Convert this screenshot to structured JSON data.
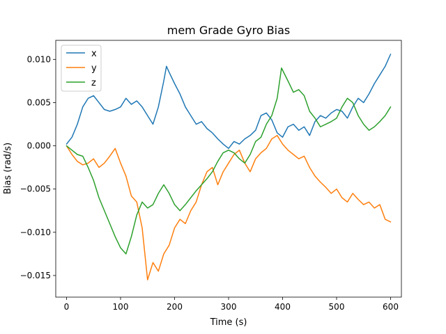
{
  "chart_data": {
    "type": "line",
    "title": "mem Grade Gyro Bias",
    "xlabel": "Time (s)",
    "ylabel": "Bias (rad/s)",
    "xlim": [
      -20,
      620
    ],
    "ylim": [
      -0.0175,
      0.0122
    ],
    "xticks": [
      0,
      100,
      200,
      300,
      400,
      500,
      600
    ],
    "xtick_labels": [
      "0",
      "100",
      "200",
      "300",
      "400",
      "500",
      "600"
    ],
    "yticks": [
      -0.015,
      -0.01,
      -0.005,
      0.0,
      0.005,
      0.01
    ],
    "ytick_labels": [
      "−0.015",
      "−0.010",
      "−0.005",
      "0.000",
      "0.005",
      "0.010"
    ],
    "grid": false,
    "legend": "top-left",
    "series": [
      {
        "name": "x",
        "color": "#1f77b4",
        "x": [
          0,
          10,
          20,
          30,
          40,
          50,
          60,
          70,
          80,
          90,
          100,
          110,
          120,
          130,
          140,
          150,
          160,
          170,
          180,
          185,
          190,
          200,
          210,
          220,
          230,
          240,
          250,
          260,
          270,
          280,
          290,
          300,
          310,
          320,
          330,
          340,
          350,
          360,
          370,
          380,
          390,
          400,
          410,
          420,
          430,
          440,
          450,
          460,
          470,
          480,
          490,
          500,
          510,
          520,
          530,
          540,
          550,
          560,
          570,
          580,
          590,
          600
        ],
        "y": [
          0.0002,
          0.001,
          0.0025,
          0.0045,
          0.0055,
          0.0058,
          0.005,
          0.0042,
          0.004,
          0.0042,
          0.0045,
          0.0055,
          0.0048,
          0.0052,
          0.0045,
          0.0035,
          0.0025,
          0.0045,
          0.0075,
          0.0092,
          0.0085,
          0.0072,
          0.006,
          0.0045,
          0.0035,
          0.0025,
          0.0028,
          0.002,
          0.0015,
          0.0008,
          0.0002,
          -0.0003,
          0.0005,
          0.0002,
          0.0008,
          0.0012,
          0.0018,
          0.0035,
          0.0038,
          0.003,
          0.0015,
          0.001,
          0.0022,
          0.0025,
          0.0018,
          0.0022,
          0.0012,
          0.0028,
          0.0035,
          0.0032,
          0.0038,
          0.0042,
          0.004,
          0.0032,
          0.0045,
          0.0055,
          0.005,
          0.006,
          0.0072,
          0.0082,
          0.0092,
          0.0106
        ]
      },
      {
        "name": "y",
        "color": "#ff7f0e",
        "x": [
          0,
          10,
          20,
          30,
          40,
          50,
          60,
          70,
          80,
          90,
          100,
          110,
          120,
          130,
          140,
          145,
          150,
          160,
          170,
          180,
          190,
          200,
          210,
          220,
          230,
          240,
          250,
          260,
          270,
          280,
          290,
          300,
          310,
          320,
          330,
          340,
          350,
          360,
          370,
          380,
          390,
          400,
          410,
          420,
          430,
          440,
          450,
          460,
          470,
          480,
          490,
          500,
          510,
          520,
          530,
          540,
          550,
          560,
          570,
          580,
          590,
          600
        ],
        "y": [
          0.0,
          -0.001,
          -0.0018,
          -0.0022,
          -0.002,
          -0.0015,
          -0.0025,
          -0.002,
          -0.0012,
          -0.0003,
          -0.002,
          -0.0035,
          -0.0058,
          -0.0065,
          -0.0095,
          -0.0125,
          -0.0155,
          -0.0135,
          -0.0145,
          -0.0125,
          -0.0115,
          -0.0095,
          -0.0085,
          -0.009,
          -0.0075,
          -0.0065,
          -0.0045,
          -0.003,
          -0.0025,
          -0.0045,
          -0.003,
          -0.002,
          -0.001,
          -0.0005,
          -0.002,
          -0.003,
          -0.0015,
          -0.0008,
          -0.0003,
          0.0008,
          0.0012,
          0.0002,
          -0.0005,
          -0.001,
          -0.0015,
          -0.0012,
          -0.0025,
          -0.0035,
          -0.0042,
          -0.0048,
          -0.0055,
          -0.005,
          -0.006,
          -0.0065,
          -0.0055,
          -0.0062,
          -0.0068,
          -0.0065,
          -0.0072,
          -0.0068,
          -0.0085,
          -0.0088
        ]
      },
      {
        "name": "z",
        "color": "#2ca02c",
        "x": [
          0,
          10,
          20,
          30,
          40,
          50,
          60,
          70,
          80,
          90,
          100,
          110,
          120,
          130,
          140,
          150,
          160,
          170,
          180,
          190,
          200,
          210,
          220,
          230,
          240,
          250,
          260,
          270,
          280,
          290,
          300,
          310,
          320,
          330,
          340,
          350,
          360,
          370,
          380,
          390,
          398,
          410,
          420,
          430,
          440,
          450,
          460,
          470,
          480,
          490,
          500,
          510,
          520,
          530,
          540,
          550,
          560,
          570,
          580,
          590,
          600
        ],
        "y": [
          0.0,
          -0.0005,
          -0.001,
          -0.0012,
          -0.0025,
          -0.004,
          -0.006,
          -0.0075,
          -0.009,
          -0.0105,
          -0.0118,
          -0.0125,
          -0.0105,
          -0.008,
          -0.0065,
          -0.0072,
          -0.0068,
          -0.0055,
          -0.0045,
          -0.0055,
          -0.0068,
          -0.0075,
          -0.0068,
          -0.006,
          -0.0052,
          -0.0045,
          -0.0038,
          -0.003,
          -0.0018,
          -0.0008,
          -0.0005,
          -0.0008,
          -0.0015,
          -0.002,
          -0.001,
          0.0005,
          0.001,
          0.0025,
          0.0035,
          0.0055,
          0.009,
          0.0075,
          0.0062,
          0.0065,
          0.0058,
          0.004,
          0.0032,
          0.0022,
          0.0025,
          0.0028,
          0.0032,
          0.0045,
          0.0055,
          0.005,
          0.0035,
          0.0025,
          0.0018,
          0.0022,
          0.0028,
          0.0035,
          0.0045
        ]
      }
    ]
  }
}
